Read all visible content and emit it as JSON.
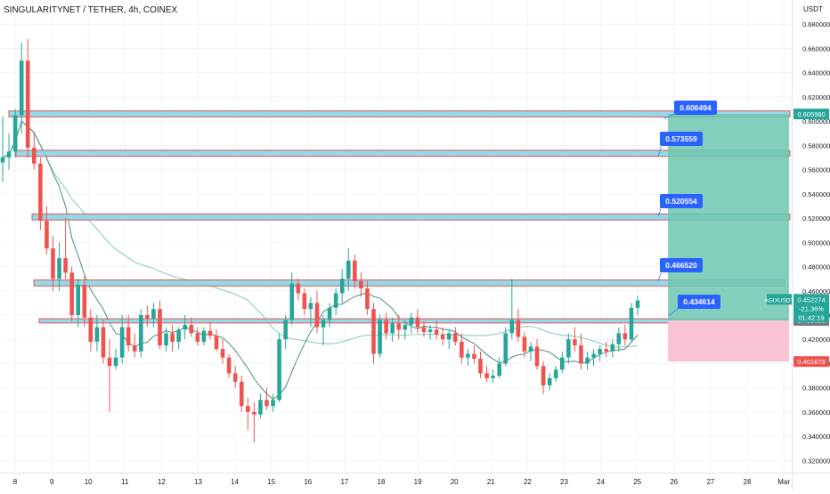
{
  "header": {
    "symbol_title": "SINGULARITYNET / TETHER, 4h, COINEX"
  },
  "currency": "USDT",
  "colors": {
    "up": "#26a69a",
    "down": "#ef5350",
    "grid": "#f0f3fa",
    "axis_text": "#131722",
    "zone_fill": "#8fd8e8",
    "zone_border": "#e05050",
    "target_fill": "#6fc6b0",
    "stop_fill": "#f8c3d3",
    "tag_blue": "#2962ff",
    "ma": "#4a8f7f",
    "ma_light": "#9fd3ca"
  },
  "price_tags": {
    "current": {
      "symbol": "AGIXUSDT",
      "price": "0.452274",
      "change": "-21.36%",
      "countdown": "01:42:19"
    },
    "target": "0.605980",
    "entry": "0.435585",
    "stop": "0.401679"
  },
  "level_labels": [
    "0.606494",
    "0.573559",
    "0.520554",
    "0.466520",
    "0.434614"
  ],
  "chart_data": {
    "type": "candlestick",
    "title": "SINGULARITYNET / TETHER, 4h, COINEX",
    "ylabel": "USDT",
    "ylim": [
      0.31,
      0.7
    ],
    "y_ticks": [
      "0.680000",
      "0.660000",
      "0.640000",
      "0.620000",
      "0.600000",
      "0.580000",
      "0.560000",
      "0.540000",
      "0.520000",
      "0.500000",
      "0.480000",
      "0.460000",
      "0.440000",
      "0.420000",
      "0.400000",
      "0.380000",
      "0.360000",
      "0.340000",
      "0.320000"
    ],
    "x_ticks": [
      "8",
      "9",
      "10",
      "11",
      "12",
      "13",
      "14",
      "15",
      "16",
      "17",
      "18",
      "19",
      "20",
      "21",
      "22",
      "23",
      "24",
      "25",
      "26",
      "27",
      "28",
      "Mar"
    ],
    "candles": [
      {
        "o": 0.566,
        "h": 0.604,
        "l": 0.55,
        "c": 0.57
      },
      {
        "o": 0.57,
        "h": 0.59,
        "l": 0.56,
        "c": 0.575
      },
      {
        "o": 0.575,
        "h": 0.61,
        "l": 0.57,
        "c": 0.605
      },
      {
        "o": 0.605,
        "h": 0.665,
        "l": 0.59,
        "c": 0.65
      },
      {
        "o": 0.65,
        "h": 0.668,
        "l": 0.57,
        "c": 0.578
      },
      {
        "o": 0.578,
        "h": 0.59,
        "l": 0.56,
        "c": 0.565
      },
      {
        "o": 0.565,
        "h": 0.57,
        "l": 0.51,
        "c": 0.518
      },
      {
        "o": 0.518,
        "h": 0.53,
        "l": 0.49,
        "c": 0.495
      },
      {
        "o": 0.495,
        "h": 0.505,
        "l": 0.46,
        "c": 0.47
      },
      {
        "o": 0.47,
        "h": 0.5,
        "l": 0.46,
        "c": 0.487
      },
      {
        "o": 0.487,
        "h": 0.52,
        "l": 0.47,
        "c": 0.475
      },
      {
        "o": 0.475,
        "h": 0.48,
        "l": 0.435,
        "c": 0.44
      },
      {
        "o": 0.44,
        "h": 0.47,
        "l": 0.43,
        "c": 0.465
      },
      {
        "o": 0.465,
        "h": 0.472,
        "l": 0.43,
        "c": 0.438
      },
      {
        "o": 0.438,
        "h": 0.445,
        "l": 0.41,
        "c": 0.418
      },
      {
        "o": 0.418,
        "h": 0.44,
        "l": 0.41,
        "c": 0.43
      },
      {
        "o": 0.43,
        "h": 0.436,
        "l": 0.4,
        "c": 0.405
      },
      {
        "o": 0.405,
        "h": 0.42,
        "l": 0.36,
        "c": 0.398
      },
      {
        "o": 0.398,
        "h": 0.412,
        "l": 0.395,
        "c": 0.405
      },
      {
        "o": 0.405,
        "h": 0.44,
        "l": 0.4,
        "c": 0.43
      },
      {
        "o": 0.43,
        "h": 0.44,
        "l": 0.41,
        "c": 0.415
      },
      {
        "o": 0.415,
        "h": 0.425,
        "l": 0.405,
        "c": 0.41
      },
      {
        "o": 0.41,
        "h": 0.445,
        "l": 0.405,
        "c": 0.44
      },
      {
        "o": 0.44,
        "h": 0.448,
        "l": 0.43,
        "c": 0.437
      },
      {
        "o": 0.437,
        "h": 0.45,
        "l": 0.43,
        "c": 0.445
      },
      {
        "o": 0.445,
        "h": 0.452,
        "l": 0.412,
        "c": 0.415
      },
      {
        "o": 0.415,
        "h": 0.43,
        "l": 0.41,
        "c": 0.425
      },
      {
        "o": 0.425,
        "h": 0.432,
        "l": 0.41,
        "c": 0.418
      },
      {
        "o": 0.418,
        "h": 0.43,
        "l": 0.412,
        "c": 0.428
      },
      {
        "o": 0.428,
        "h": 0.44,
        "l": 0.42,
        "c": 0.432
      },
      {
        "o": 0.432,
        "h": 0.438,
        "l": 0.422,
        "c": 0.425
      },
      {
        "o": 0.425,
        "h": 0.43,
        "l": 0.415,
        "c": 0.418
      },
      {
        "o": 0.418,
        "h": 0.43,
        "l": 0.415,
        "c": 0.427
      },
      {
        "o": 0.427,
        "h": 0.435,
        "l": 0.42,
        "c": 0.423
      },
      {
        "o": 0.423,
        "h": 0.428,
        "l": 0.41,
        "c": 0.412
      },
      {
        "o": 0.412,
        "h": 0.42,
        "l": 0.4,
        "c": 0.405
      },
      {
        "o": 0.405,
        "h": 0.408,
        "l": 0.388,
        "c": 0.392
      },
      {
        "o": 0.392,
        "h": 0.398,
        "l": 0.38,
        "c": 0.385
      },
      {
        "o": 0.385,
        "h": 0.39,
        "l": 0.36,
        "c": 0.365
      },
      {
        "o": 0.365,
        "h": 0.372,
        "l": 0.345,
        "c": 0.36
      },
      {
        "o": 0.36,
        "h": 0.368,
        "l": 0.335,
        "c": 0.358
      },
      {
        "o": 0.358,
        "h": 0.375,
        "l": 0.355,
        "c": 0.37
      },
      {
        "o": 0.37,
        "h": 0.38,
        "l": 0.362,
        "c": 0.365
      },
      {
        "o": 0.365,
        "h": 0.375,
        "l": 0.36,
        "c": 0.37
      },
      {
        "o": 0.37,
        "h": 0.425,
        "l": 0.368,
        "c": 0.42
      },
      {
        "o": 0.42,
        "h": 0.44,
        "l": 0.412,
        "c": 0.436
      },
      {
        "o": 0.436,
        "h": 0.475,
        "l": 0.432,
        "c": 0.466
      },
      {
        "o": 0.466,
        "h": 0.47,
        "l": 0.452,
        "c": 0.458
      },
      {
        "o": 0.458,
        "h": 0.462,
        "l": 0.44,
        "c": 0.445
      },
      {
        "o": 0.445,
        "h": 0.455,
        "l": 0.43,
        "c": 0.45
      },
      {
        "o": 0.45,
        "h": 0.46,
        "l": 0.425,
        "c": 0.43
      },
      {
        "o": 0.43,
        "h": 0.44,
        "l": 0.415,
        "c": 0.436
      },
      {
        "o": 0.436,
        "h": 0.45,
        "l": 0.43,
        "c": 0.446
      },
      {
        "o": 0.446,
        "h": 0.462,
        "l": 0.44,
        "c": 0.458
      },
      {
        "o": 0.458,
        "h": 0.478,
        "l": 0.45,
        "c": 0.47
      },
      {
        "o": 0.47,
        "h": 0.495,
        "l": 0.46,
        "c": 0.485
      },
      {
        "o": 0.485,
        "h": 0.49,
        "l": 0.462,
        "c": 0.468
      },
      {
        "o": 0.468,
        "h": 0.475,
        "l": 0.455,
        "c": 0.462
      },
      {
        "o": 0.462,
        "h": 0.468,
        "l": 0.44,
        "c": 0.445
      },
      {
        "o": 0.445,
        "h": 0.45,
        "l": 0.4,
        "c": 0.408
      },
      {
        "o": 0.408,
        "h": 0.44,
        "l": 0.405,
        "c": 0.436
      },
      {
        "o": 0.436,
        "h": 0.442,
        "l": 0.42,
        "c": 0.425
      },
      {
        "o": 0.425,
        "h": 0.438,
        "l": 0.418,
        "c": 0.433
      },
      {
        "o": 0.433,
        "h": 0.44,
        "l": 0.42,
        "c": 0.428
      },
      {
        "o": 0.428,
        "h": 0.436,
        "l": 0.42,
        "c": 0.432
      },
      {
        "o": 0.432,
        "h": 0.442,
        "l": 0.425,
        "c": 0.438
      },
      {
        "o": 0.438,
        "h": 0.445,
        "l": 0.425,
        "c": 0.43
      },
      {
        "o": 0.43,
        "h": 0.435,
        "l": 0.422,
        "c": 0.426
      },
      {
        "o": 0.426,
        "h": 0.432,
        "l": 0.42,
        "c": 0.428
      },
      {
        "o": 0.428,
        "h": 0.435,
        "l": 0.42,
        "c": 0.424
      },
      {
        "o": 0.424,
        "h": 0.43,
        "l": 0.415,
        "c": 0.42
      },
      {
        "o": 0.42,
        "h": 0.428,
        "l": 0.412,
        "c": 0.425
      },
      {
        "o": 0.425,
        "h": 0.43,
        "l": 0.415,
        "c": 0.418
      },
      {
        "o": 0.418,
        "h": 0.425,
        "l": 0.4,
        "c": 0.405
      },
      {
        "o": 0.405,
        "h": 0.412,
        "l": 0.398,
        "c": 0.408
      },
      {
        "o": 0.408,
        "h": 0.415,
        "l": 0.4,
        "c": 0.404
      },
      {
        "o": 0.404,
        "h": 0.41,
        "l": 0.388,
        "c": 0.392
      },
      {
        "o": 0.392,
        "h": 0.398,
        "l": 0.385,
        "c": 0.388
      },
      {
        "o": 0.388,
        "h": 0.395,
        "l": 0.384,
        "c": 0.39
      },
      {
        "o": 0.39,
        "h": 0.405,
        "l": 0.388,
        "c": 0.4
      },
      {
        "o": 0.4,
        "h": 0.43,
        "l": 0.398,
        "c": 0.425
      },
      {
        "o": 0.425,
        "h": 0.47,
        "l": 0.42,
        "c": 0.436
      },
      {
        "o": 0.436,
        "h": 0.445,
        "l": 0.418,
        "c": 0.422
      },
      {
        "o": 0.422,
        "h": 0.426,
        "l": 0.405,
        "c": 0.41
      },
      {
        "o": 0.41,
        "h": 0.418,
        "l": 0.402,
        "c": 0.414
      },
      {
        "o": 0.414,
        "h": 0.42,
        "l": 0.395,
        "c": 0.398
      },
      {
        "o": 0.398,
        "h": 0.402,
        "l": 0.375,
        "c": 0.382
      },
      {
        "o": 0.382,
        "h": 0.392,
        "l": 0.378,
        "c": 0.388
      },
      {
        "o": 0.388,
        "h": 0.398,
        "l": 0.385,
        "c": 0.395
      },
      {
        "o": 0.395,
        "h": 0.41,
        "l": 0.392,
        "c": 0.405
      },
      {
        "o": 0.405,
        "h": 0.425,
        "l": 0.4,
        "c": 0.42
      },
      {
        "o": 0.42,
        "h": 0.43,
        "l": 0.41,
        "c": 0.415
      },
      {
        "o": 0.415,
        "h": 0.425,
        "l": 0.395,
        "c": 0.4
      },
      {
        "o": 0.4,
        "h": 0.41,
        "l": 0.395,
        "c": 0.405
      },
      {
        "o": 0.405,
        "h": 0.412,
        "l": 0.398,
        "c": 0.408
      },
      {
        "o": 0.408,
        "h": 0.415,
        "l": 0.402,
        "c": 0.412
      },
      {
        "o": 0.412,
        "h": 0.418,
        "l": 0.405,
        "c": 0.41
      },
      {
        "o": 0.41,
        "h": 0.42,
        "l": 0.405,
        "c": 0.416
      },
      {
        "o": 0.416,
        "h": 0.43,
        "l": 0.41,
        "c": 0.425
      },
      {
        "o": 0.425,
        "h": 0.432,
        "l": 0.415,
        "c": 0.42
      },
      {
        "o": 0.42,
        "h": 0.45,
        "l": 0.418,
        "c": 0.446
      },
      {
        "o": 0.446,
        "h": 0.456,
        "l": 0.44,
        "c": 0.452
      }
    ],
    "resistance_zones": [
      {
        "low": 0.6035,
        "high": 0.6085
      },
      {
        "low": 0.571,
        "high": 0.576
      },
      {
        "low": 0.5185,
        "high": 0.5235
      },
      {
        "low": 0.464,
        "high": 0.469
      },
      {
        "low": 0.4335,
        "high": 0.437
      }
    ],
    "position": {
      "entry": 0.435585,
      "target": 0.60598,
      "stop": 0.401679
    }
  }
}
